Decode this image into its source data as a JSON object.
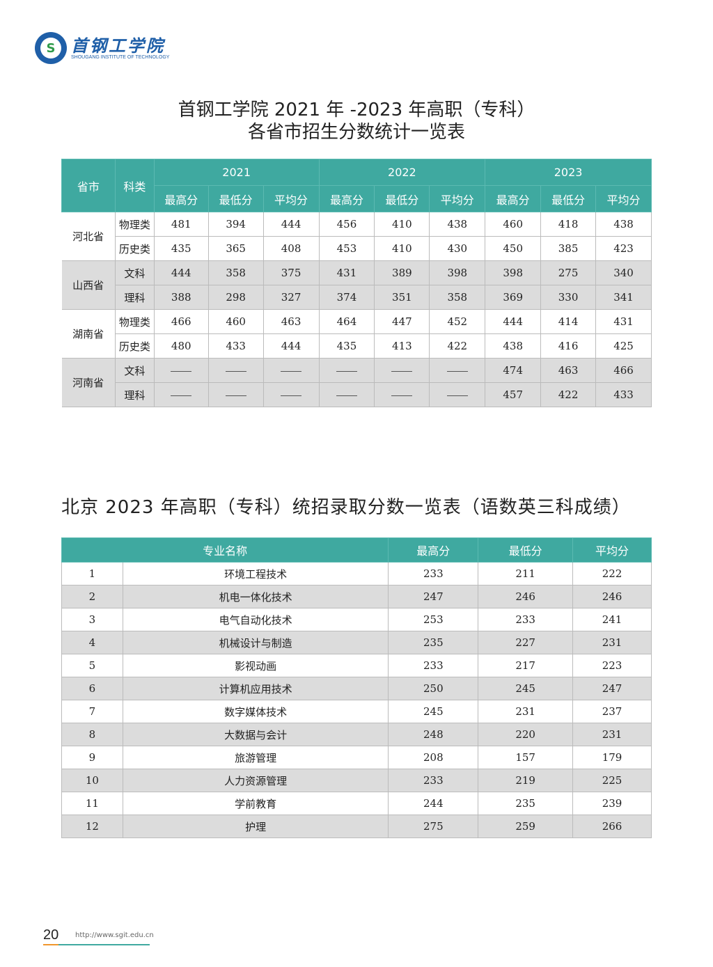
{
  "logo": {
    "cn": "首钢工学院",
    "en": "SHOUGANG INSTITUTE OF TECHNOLOGY"
  },
  "title1": {
    "line1": "首钢工学院 2021 年 -2023 年高职（专科）",
    "line2": "各省市招生分数统计一览表"
  },
  "table1": {
    "headers": {
      "province": "省市",
      "type": "科类",
      "years": [
        "2021",
        "2022",
        "2023"
      ],
      "sub": [
        "最高分",
        "最低分",
        "平均分"
      ]
    },
    "rows": [
      {
        "province": "河北省",
        "type": "物理类",
        "v": [
          "481",
          "394",
          "444",
          "456",
          "410",
          "438",
          "460",
          "418",
          "438"
        ]
      },
      {
        "type": "历史类",
        "v": [
          "435",
          "365",
          "408",
          "453",
          "410",
          "430",
          "450",
          "385",
          "423"
        ]
      },
      {
        "province": "山西省",
        "type": "文科",
        "v": [
          "444",
          "358",
          "375",
          "431",
          "389",
          "398",
          "398",
          "275",
          "340"
        ]
      },
      {
        "type": "理科",
        "v": [
          "388",
          "298",
          "327",
          "374",
          "351",
          "358",
          "369",
          "330",
          "341"
        ]
      },
      {
        "province": "湖南省",
        "type": "物理类",
        "v": [
          "466",
          "460",
          "463",
          "464",
          "447",
          "452",
          "444",
          "414",
          "431"
        ]
      },
      {
        "type": "历史类",
        "v": [
          "480",
          "433",
          "444",
          "435",
          "413",
          "422",
          "438",
          "416",
          "425"
        ]
      },
      {
        "province": "河南省",
        "type": "文科",
        "v": [
          "—",
          "—",
          "—",
          "—",
          "—",
          "—",
          "474",
          "463",
          "466"
        ]
      },
      {
        "type": "理科",
        "v": [
          "—",
          "—",
          "—",
          "—",
          "—",
          "—",
          "457",
          "422",
          "433"
        ]
      }
    ]
  },
  "title2": "北京 2023 年高职（专科）统招录取分数一览表（语数英三科成绩）",
  "table2": {
    "headers": [
      "专业名称",
      "最高分",
      "最低分",
      "平均分"
    ],
    "rows": [
      [
        "1",
        "环境工程技术",
        "233",
        "211",
        "222"
      ],
      [
        "2",
        "机电一体化技术",
        "247",
        "246",
        "246"
      ],
      [
        "3",
        "电气自动化技术",
        "253",
        "233",
        "241"
      ],
      [
        "4",
        "机械设计与制造",
        "235",
        "227",
        "231"
      ],
      [
        "5",
        "影视动画",
        "233",
        "217",
        "223"
      ],
      [
        "6",
        "计算机应用技术",
        "250",
        "245",
        "247"
      ],
      [
        "7",
        "数字媒体技术",
        "245",
        "231",
        "237"
      ],
      [
        "8",
        "大数据与会计",
        "248",
        "220",
        "231"
      ],
      [
        "9",
        "旅游管理",
        "208",
        "157",
        "179"
      ],
      [
        "10",
        "人力资源管理",
        "233",
        "219",
        "225"
      ],
      [
        "11",
        "学前教育",
        "244",
        "235",
        "239"
      ],
      [
        "12",
        "护理",
        "275",
        "259",
        "266"
      ]
    ]
  },
  "footer": {
    "page": "20",
    "url": "http://www.sgit.edu.cn"
  },
  "colors": {
    "header": "#3fa9a0",
    "stripe": "#dcdcdc",
    "accent": "#f0962c"
  }
}
